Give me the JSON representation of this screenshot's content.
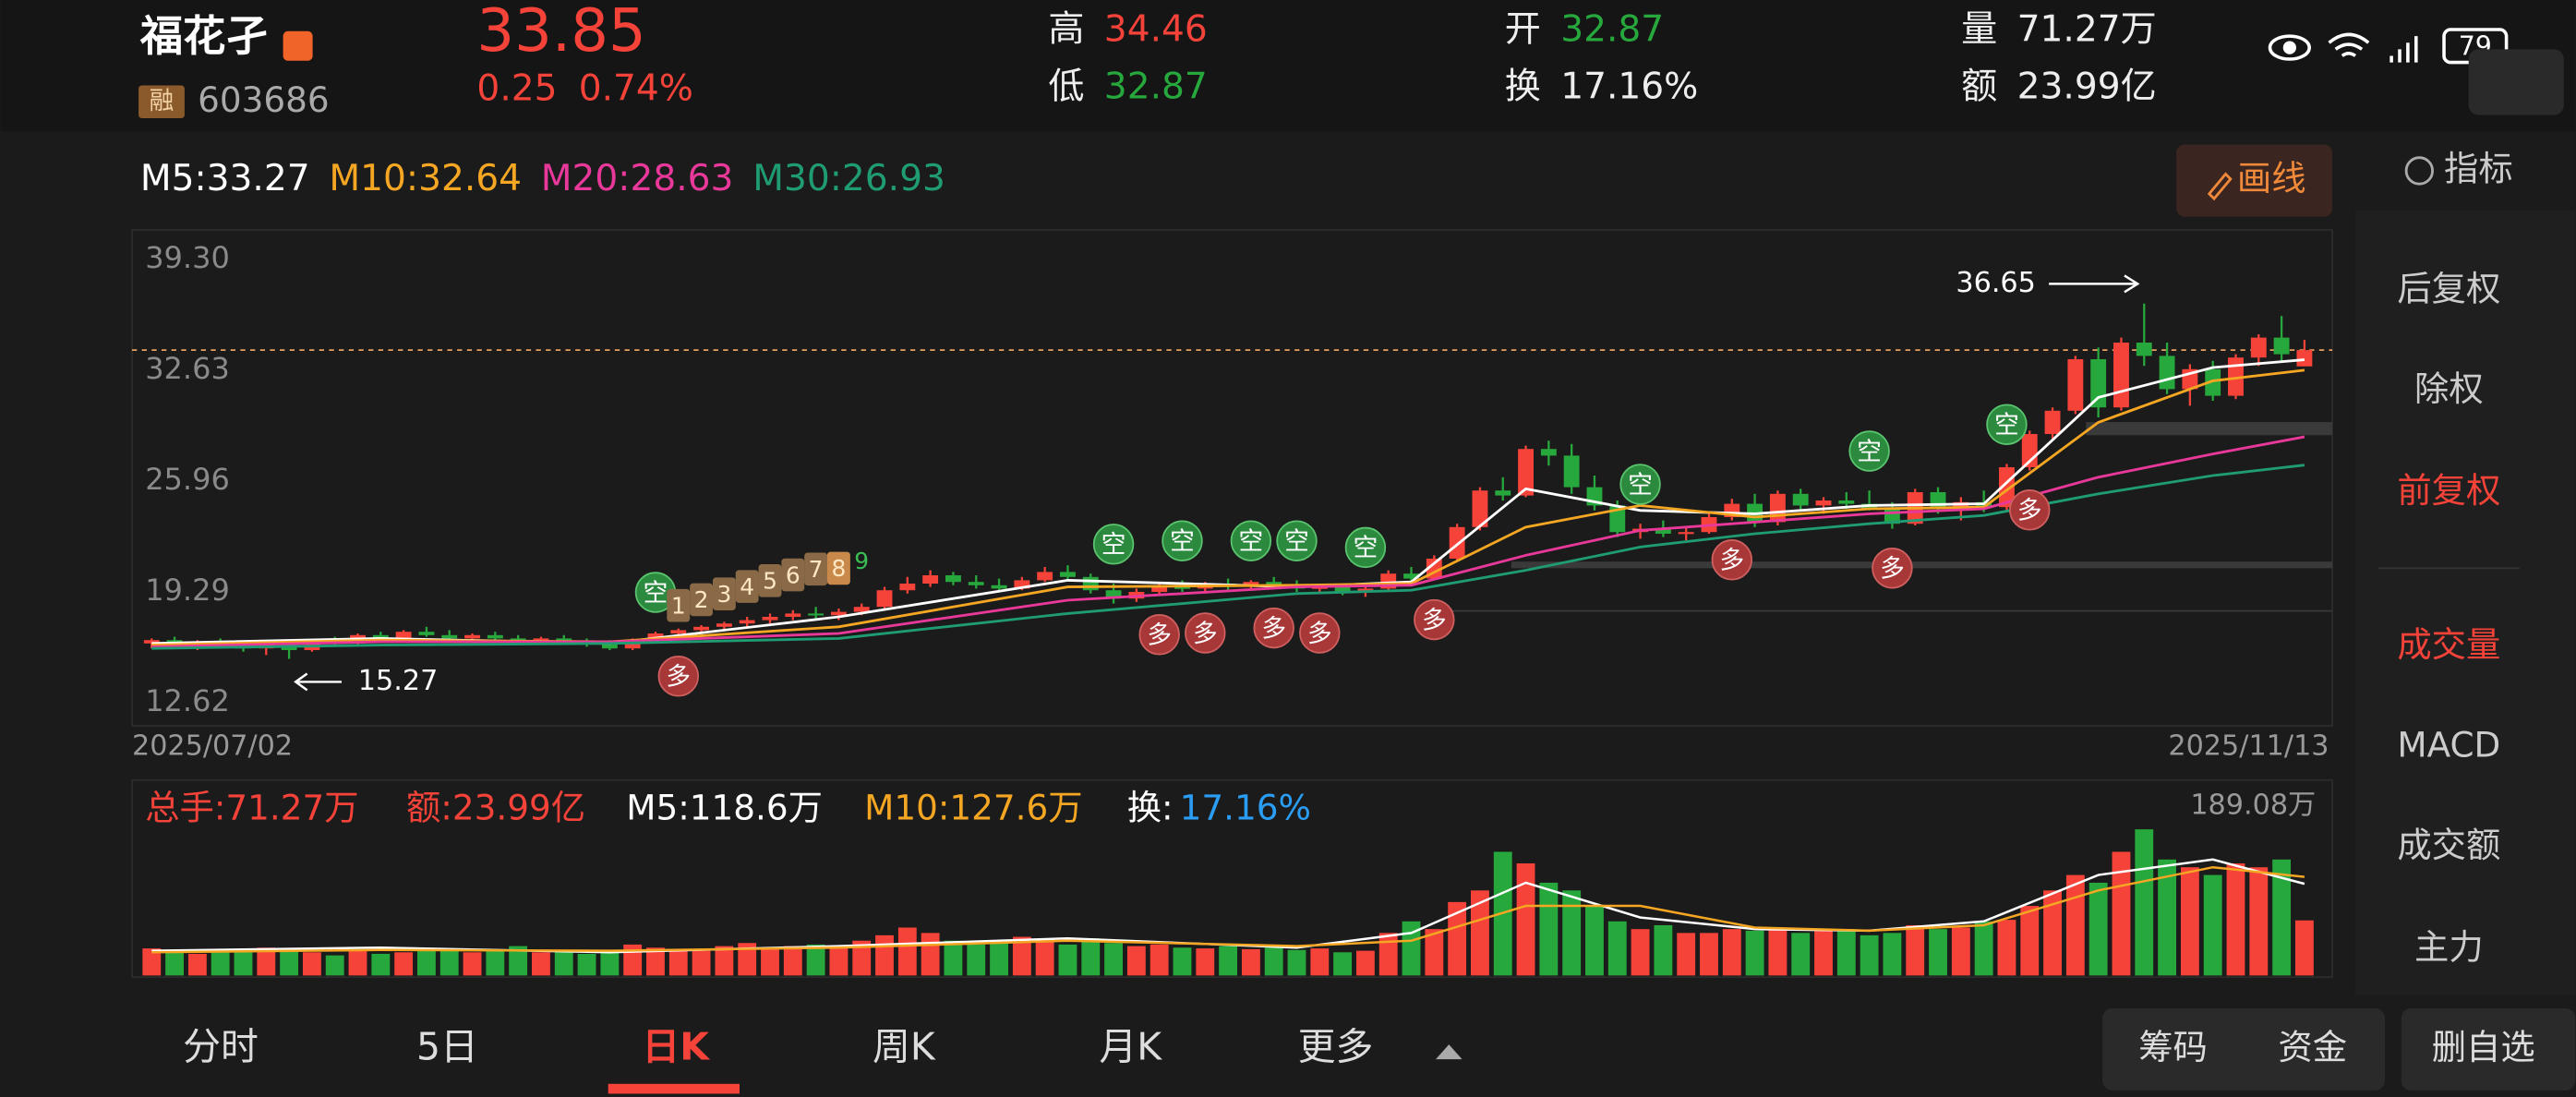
{
  "header": {
    "name": "福花孑",
    "badge": "融",
    "code": "603686",
    "price": "33.85",
    "change": "0.25",
    "change_pct": "0.74%",
    "high_label": "高",
    "high": "34.46",
    "low_label": "低",
    "low": "32.87",
    "open_label": "开",
    "open": "32.87",
    "turnover_label": "换",
    "turnover": "17.16%",
    "volume_label": "量",
    "volume": "71.27万",
    "amount_label": "额",
    "amount": "23.99亿",
    "battery": "79"
  },
  "toolbar": {
    "draw": "画线",
    "indicator": "指标"
  },
  "side_menu": [
    "后复权",
    "除权",
    "前复权",
    "成交量",
    "MACD",
    "成交额",
    "主力"
  ],
  "ma_legend": [
    "M5:33.27",
    "M10:32.64",
    "M20:28.63",
    "M30:26.93"
  ],
  "volume_legend": {
    "total": "总手:71.27万",
    "amount": "额:23.99亿",
    "m5": "M5:118.6万",
    "m10": "M10:127.6万",
    "turnover_label": "换:",
    "turnover": "17.16%",
    "max": "189.08万"
  },
  "tabs": [
    "分时",
    "5日",
    "日K",
    "周K",
    "月K",
    "更多"
  ],
  "buttons": [
    "筹码",
    "资金",
    "删自选"
  ],
  "chart_data": {
    "type": "candlestick",
    "ylim": [
      11.24,
      41.08
    ],
    "yticks": [
      12.62,
      19.29,
      25.96,
      32.63,
      {
        "value": 39.3,
        "label": "39.30"
      }
    ],
    "date_start": "2025/07/02",
    "date_end": "2025/11/13",
    "current_price": 33.85,
    "annotations": {
      "high": 36.65,
      "low": 15.27
    },
    "up_color": "#f5433a",
    "down_color": "#27a83c",
    "candles": [
      [
        16.2,
        16.5,
        15.9,
        16.4
      ],
      [
        16.4,
        16.6,
        16.0,
        16.1
      ],
      [
        16.1,
        16.4,
        15.8,
        16.3
      ],
      [
        16.3,
        16.5,
        16.0,
        16.1
      ],
      [
        16.1,
        16.3,
        15.7,
        15.9
      ],
      [
        15.9,
        16.2,
        15.5,
        16.1
      ],
      [
        16.1,
        16.3,
        15.27,
        15.8
      ],
      [
        15.8,
        16.4,
        15.7,
        16.3
      ],
      [
        16.3,
        16.6,
        16.1,
        16.2
      ],
      [
        16.2,
        16.8,
        16.1,
        16.7
      ],
      [
        16.7,
        16.9,
        16.3,
        16.4
      ],
      [
        16.4,
        17.0,
        16.3,
        16.9
      ],
      [
        16.9,
        17.2,
        16.6,
        16.7
      ],
      [
        16.7,
        17.0,
        16.4,
        16.5
      ],
      [
        16.5,
        16.8,
        16.3,
        16.7
      ],
      [
        16.7,
        16.9,
        16.4,
        16.5
      ],
      [
        16.5,
        16.7,
        16.2,
        16.3
      ],
      [
        16.3,
        16.6,
        16.1,
        16.5
      ],
      [
        16.5,
        16.7,
        16.2,
        16.3
      ],
      [
        16.3,
        16.5,
        16.0,
        16.2
      ],
      [
        16.2,
        16.4,
        15.8,
        15.9
      ],
      [
        15.9,
        16.5,
        15.8,
        16.4
      ],
      [
        16.4,
        16.9,
        16.3,
        16.8
      ],
      [
        16.8,
        17.1,
        16.6,
        17.0
      ],
      [
        17.0,
        17.3,
        16.8,
        17.2
      ],
      [
        17.2,
        17.5,
        17.0,
        17.4
      ],
      [
        17.4,
        17.8,
        17.2,
        17.6
      ],
      [
        17.6,
        18.0,
        17.4,
        17.8
      ],
      [
        17.8,
        18.2,
        17.6,
        18.0
      ],
      [
        18.0,
        18.4,
        17.7,
        17.9
      ],
      [
        17.9,
        18.3,
        17.6,
        18.1
      ],
      [
        18.1,
        18.6,
        17.9,
        18.4
      ],
      [
        18.4,
        19.6,
        18.3,
        19.4
      ],
      [
        19.4,
        20.2,
        19.2,
        19.8
      ],
      [
        19.8,
        20.6,
        19.6,
        20.3
      ],
      [
        20.3,
        20.5,
        19.7,
        19.9
      ],
      [
        19.9,
        20.3,
        19.5,
        19.7
      ],
      [
        19.7,
        20.1,
        19.3,
        19.5
      ],
      [
        19.5,
        20.2,
        19.4,
        20.0
      ],
      [
        20.0,
        20.8,
        19.9,
        20.5
      ],
      [
        20.5,
        20.9,
        20.0,
        20.2
      ],
      [
        20.2,
        20.4,
        19.2,
        19.4
      ],
      [
        19.4,
        19.8,
        18.6,
        18.9
      ],
      [
        18.9,
        19.5,
        18.7,
        19.3
      ],
      [
        19.3,
        19.8,
        19.1,
        19.6
      ],
      [
        19.6,
        20.0,
        19.3,
        19.5
      ],
      [
        19.5,
        19.9,
        19.2,
        19.8
      ],
      [
        19.8,
        20.1,
        19.4,
        19.6
      ],
      [
        19.6,
        20.0,
        19.4,
        19.9
      ],
      [
        19.9,
        20.2,
        19.5,
        19.7
      ],
      [
        19.7,
        20.0,
        19.3,
        19.5
      ],
      [
        19.5,
        19.8,
        19.2,
        19.6
      ],
      [
        19.6,
        19.8,
        19.1,
        19.3
      ],
      [
        19.3,
        19.6,
        19.0,
        19.5
      ],
      [
        19.5,
        20.6,
        19.4,
        20.4
      ],
      [
        20.4,
        20.8,
        19.9,
        20.1
      ],
      [
        20.1,
        21.5,
        20.0,
        21.3
      ],
      [
        21.3,
        23.4,
        21.2,
        23.2
      ],
      [
        23.2,
        25.6,
        23.0,
        25.4
      ],
      [
        25.4,
        26.2,
        24.8,
        25.1
      ],
      [
        25.1,
        28.1,
        25.0,
        27.9
      ],
      [
        27.9,
        28.4,
        26.9,
        27.5
      ],
      [
        27.5,
        28.2,
        25.2,
        25.6
      ],
      [
        25.6,
        26.3,
        24.2,
        24.5
      ],
      [
        24.5,
        24.8,
        22.6,
        22.9
      ],
      [
        22.9,
        23.4,
        22.5,
        23.1
      ],
      [
        23.1,
        23.6,
        22.6,
        22.8
      ],
      [
        22.8,
        23.2,
        22.4,
        22.9
      ],
      [
        22.9,
        24.0,
        22.8,
        23.8
      ],
      [
        23.8,
        24.9,
        23.6,
        24.6
      ],
      [
        24.6,
        25.2,
        23.2,
        23.5
      ],
      [
        23.5,
        25.4,
        23.3,
        25.2
      ],
      [
        25.2,
        25.5,
        24.2,
        24.5
      ],
      [
        24.5,
        25.0,
        24.0,
        24.8
      ],
      [
        24.8,
        25.3,
        24.3,
        24.6
      ],
      [
        24.6,
        25.4,
        24.2,
        24.3
      ],
      [
        24.3,
        24.7,
        23.1,
        23.4
      ],
      [
        23.4,
        25.5,
        23.3,
        25.3
      ],
      [
        25.3,
        25.6,
        24.0,
        24.3
      ],
      [
        24.3,
        25.0,
        23.6,
        24.7
      ],
      [
        24.7,
        25.4,
        24.1,
        24.4
      ],
      [
        24.4,
        27.0,
        24.2,
        26.8
      ],
      [
        26.8,
        29.0,
        26.6,
        28.8
      ],
      [
        28.8,
        30.4,
        28.5,
        30.2
      ],
      [
        30.2,
        33.5,
        30.0,
        33.3
      ],
      [
        33.3,
        34.0,
        29.8,
        30.4
      ],
      [
        30.4,
        34.6,
        30.2,
        34.3
      ],
      [
        34.3,
        36.65,
        32.9,
        33.5
      ],
      [
        33.5,
        34.3,
        31.2,
        31.5
      ],
      [
        31.5,
        33.0,
        30.5,
        32.7
      ],
      [
        32.7,
        33.2,
        30.8,
        31.1
      ],
      [
        31.1,
        33.6,
        30.9,
        33.4
      ],
      [
        33.4,
        34.8,
        32.9,
        34.6
      ],
      [
        34.6,
        35.9,
        33.2,
        33.6
      ],
      [
        32.87,
        34.46,
        32.87,
        33.85
      ]
    ],
    "ma_x": [
      0,
      10,
      20,
      30,
      40,
      50,
      55,
      60,
      65,
      70,
      75,
      80,
      85,
      90,
      94
    ],
    "ma_series": [
      {
        "name": "M5",
        "color": "#ffffff",
        "values": [
          16.2,
          16.5,
          16.2,
          17.8,
          20.0,
          19.6,
          19.9,
          25.5,
          24.2,
          24.0,
          24.5,
          24.6,
          31.0,
          32.8,
          33.27
        ]
      },
      {
        "name": "M10",
        "color": "#f5a623",
        "values": [
          16.1,
          16.4,
          16.3,
          17.2,
          19.6,
          19.7,
          19.8,
          23.2,
          24.5,
          23.8,
          24.3,
          24.4,
          29.5,
          32.0,
          32.64
        ]
      },
      {
        "name": "M20",
        "color": "#e8399a",
        "values": [
          16.0,
          16.3,
          16.3,
          16.8,
          18.8,
          19.6,
          19.7,
          21.5,
          23.0,
          23.5,
          24.0,
          24.3,
          26.2,
          27.6,
          28.63
        ]
      },
      {
        "name": "M30",
        "color": "#1f9c74",
        "values": [
          15.9,
          16.1,
          16.2,
          16.5,
          18.0,
          19.2,
          19.4,
          20.6,
          22.0,
          22.8,
          23.4,
          23.9,
          25.2,
          26.3,
          26.93
        ]
      }
    ],
    "markers": [
      {
        "label": "空",
        "index": 22
      },
      {
        "label": "多",
        "index": 23
      },
      {
        "label": "空",
        "index": 42
      },
      {
        "label": "多",
        "index": 44
      },
      {
        "label": "空",
        "index": 45
      },
      {
        "label": "多",
        "index": 46
      },
      {
        "label": "空",
        "index": 48
      },
      {
        "label": "多",
        "index": 49
      },
      {
        "label": "空",
        "index": 50
      },
      {
        "label": "多",
        "index": 51
      },
      {
        "label": "空",
        "index": 53
      },
      {
        "label": "多",
        "index": 56
      },
      {
        "label": "空",
        "index": 65
      },
      {
        "label": "多",
        "index": 69
      },
      {
        "label": "空",
        "index": 75
      },
      {
        "label": "多",
        "index": 76
      },
      {
        "label": "空",
        "index": 81
      },
      {
        "label": "多",
        "index": 82
      }
    ],
    "td_labels": [
      {
        "label": "1",
        "index": 23
      },
      {
        "label": "2",
        "index": 24
      },
      {
        "label": "3",
        "index": 25
      },
      {
        "label": "4",
        "index": 26
      },
      {
        "label": "5",
        "index": 27
      },
      {
        "label": "6",
        "index": 28
      },
      {
        "label": "7",
        "index": 29
      },
      {
        "label": "8",
        "index": 30
      },
      {
        "label": "9",
        "index": 31
      }
    ],
    "volume_ylim": [
      0,
      189.08
    ],
    "volume": [
      35,
      30,
      28,
      32,
      30,
      36,
      33,
      30,
      26,
      34,
      28,
      30,
      35,
      32,
      30,
      33,
      38,
      30,
      32,
      28,
      30,
      40,
      36,
      34,
      32,
      38,
      42,
      35,
      38,
      40,
      36,
      45,
      52,
      62,
      55,
      45,
      40,
      44,
      50,
      46,
      40,
      48,
      42,
      38,
      40,
      36,
      35,
      38,
      34,
      36,
      33,
      35,
      30,
      32,
      55,
      70,
      60,
      95,
      110,
      160,
      145,
      120,
      110,
      90,
      70,
      60,
      65,
      55,
      55,
      60,
      58,
      62,
      55,
      58,
      60,
      52,
      55,
      65,
      60,
      62,
      70,
      72,
      90,
      110,
      130,
      120,
      160,
      189.08,
      150,
      140,
      130,
      145,
      140,
      150,
      71.27
    ],
    "volume_ma_series": [
      {
        "name": "M5",
        "color": "#ffffff",
        "values": [
          32,
          36,
          30,
          38,
          48,
          36,
          55,
          120,
          75,
          60,
          58,
          70,
          130,
          150,
          118.6
        ]
      },
      {
        "name": "M10",
        "color": "#f5a623",
        "values": [
          30,
          33,
          32,
          36,
          45,
          38,
          45,
          90,
          90,
          62,
          58,
          65,
          110,
          140,
          127.6
        ]
      }
    ]
  }
}
